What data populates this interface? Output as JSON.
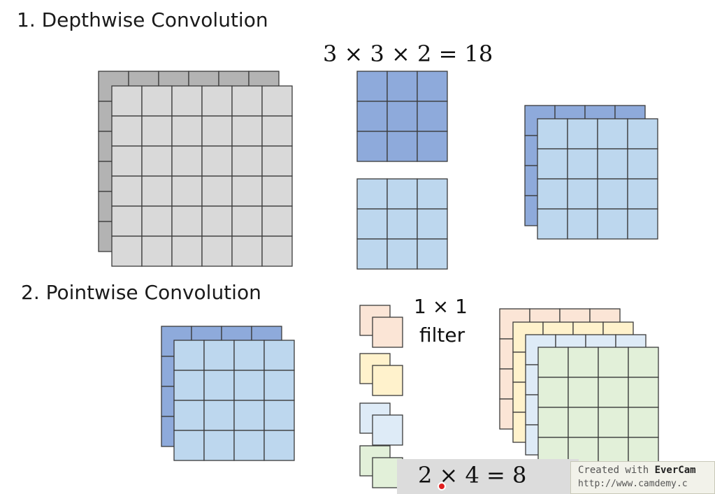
{
  "titles": {
    "depthwise": "1. Depthwise Convolution",
    "pointwise": "2. Pointwise Convolution"
  },
  "equations": {
    "depthwise_params": "3 × 3 × 2 = 18",
    "pointwise_params": "2 × 4 = 8"
  },
  "filter_caption": {
    "line1": "1 × 1",
    "line2": "filter"
  },
  "watermark": {
    "prefix": "Created with ",
    "brand": "EverCam",
    "url": "http://www.camdemy.c"
  },
  "colors": {
    "input_front": "#d9d9d9",
    "input_back": "#b3b3b3",
    "depth_kernel_1": "#8eaadb",
    "depth_kernel_2": "#bdd7ee",
    "channel_back": "#8eaadb",
    "channel_front": "#bdd7ee",
    "filter_orange": "#fbe5d6",
    "filter_yellow": "#fff2cc",
    "filter_blue": "#deebf7",
    "filter_green": "#e2f0d9",
    "out_green": "#e2f0d9",
    "grid_line": "#3a3a3a"
  },
  "icons": [
    "cursor-dot-icon"
  ]
}
